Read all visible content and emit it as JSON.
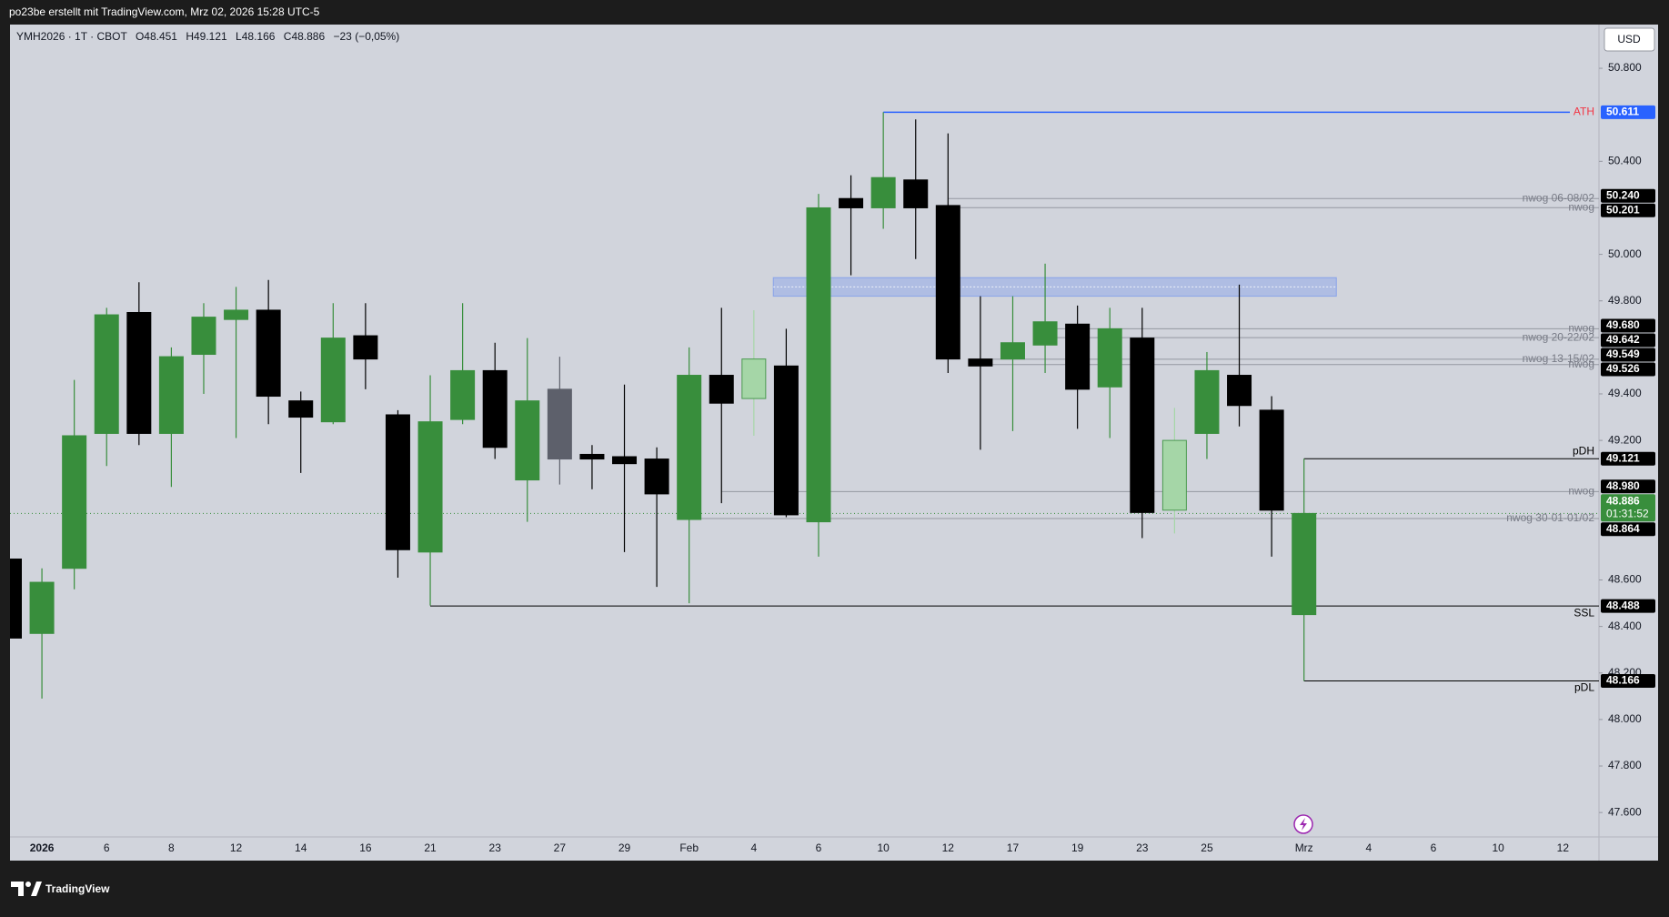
{
  "header": {
    "text": "po23be erstellt mit TradingView.com, Mrz 02, 2026 15:28 UTC-5"
  },
  "footer": {
    "brand": "TradingView"
  },
  "chart_data": {
    "type": "candlestick",
    "currency": "USD",
    "legend": {
      "symbol": "YMH2026 · 1T · CBOT",
      "ohlc_letters": [
        "O",
        "H",
        "L",
        "C"
      ],
      "change": "−23 (−0,05%)"
    },
    "categories": [
      null,
      "2026",
      null,
      "6",
      null,
      "8",
      null,
      "12",
      null,
      "14",
      null,
      "16",
      null,
      "21",
      null,
      "23",
      null,
      "27",
      null,
      "29",
      null,
      "Feb",
      null,
      "4",
      null,
      "6",
      null,
      "10",
      null,
      "12",
      null,
      "17",
      null,
      "19",
      null,
      "23",
      null,
      "25",
      null,
      null,
      "Mrz",
      null,
      "4",
      null,
      "6",
      null,
      "10",
      null,
      "12"
    ],
    "open": [
      48.69,
      48.37,
      48.65,
      49.23,
      49.75,
      49.23,
      49.57,
      49.72,
      49.76,
      49.37,
      49.28,
      49.65,
      49.31,
      48.72,
      49.29,
      49.5,
      49.03,
      49.42,
      49.14,
      49.13,
      49.12,
      48.86,
      49.48,
      49.38,
      49.52,
      48.85,
      50.24,
      50.2,
      50.32,
      50.21,
      49.55,
      49.55,
      49.61,
      49.7,
      49.43,
      49.64,
      48.9,
      49.23,
      49.48,
      49.33,
      48.451,
      null,
      null,
      null,
      null,
      null,
      null,
      null,
      null
    ],
    "high": [
      48.69,
      48.65,
      49.46,
      49.77,
      49.88,
      49.6,
      49.79,
      49.86,
      49.89,
      49.41,
      49.79,
      49.79,
      49.33,
      49.48,
      49.79,
      49.62,
      49.64,
      49.56,
      49.18,
      49.44,
      49.17,
      49.6,
      49.77,
      49.76,
      49.68,
      50.26,
      50.34,
      50.611,
      50.58,
      50.52,
      49.82,
      49.82,
      49.96,
      49.78,
      49.77,
      49.77,
      49.34,
      49.58,
      49.87,
      49.39,
      49.121,
      null,
      null,
      null,
      null,
      null,
      null,
      null,
      null
    ],
    "low": [
      48.35,
      48.09,
      48.56,
      49.09,
      49.18,
      49.0,
      49.4,
      49.21,
      49.27,
      49.06,
      49.27,
      49.42,
      48.61,
      48.49,
      49.27,
      49.12,
      48.85,
      49.01,
      48.99,
      48.72,
      48.57,
      48.5,
      48.93,
      49.22,
      48.87,
      48.7,
      49.91,
      50.11,
      49.98,
      49.49,
      49.16,
      49.24,
      49.49,
      49.25,
      49.21,
      48.78,
      48.8,
      49.12,
      49.26,
      48.7,
      48.166,
      null,
      null,
      null,
      null,
      null,
      null,
      null,
      null
    ],
    "close": [
      48.35,
      48.59,
      49.22,
      49.74,
      49.23,
      49.56,
      49.73,
      49.76,
      49.39,
      49.3,
      49.64,
      49.55,
      48.73,
      49.28,
      49.5,
      49.17,
      49.37,
      49.12,
      49.12,
      49.1,
      48.97,
      49.48,
      49.36,
      49.55,
      48.88,
      50.2,
      50.2,
      50.33,
      50.2,
      49.55,
      49.52,
      49.62,
      49.71,
      49.42,
      49.68,
      48.89,
      49.2,
      49.5,
      49.35,
      48.9,
      48.886,
      null,
      null,
      null,
      null,
      null,
      null,
      null,
      null
    ],
    "colors": [
      "#000000",
      "#388e3c",
      "#388e3c",
      "#388e3c",
      "#000000",
      "#388e3c",
      "#388e3c",
      "#388e3c",
      "#000000",
      "#000000",
      "#388e3c",
      "#000000",
      "#000000",
      "#388e3c",
      "#388e3c",
      "#000000",
      "#388e3c",
      "#5d606b",
      "#000000",
      "#000000",
      "#000000",
      "#388e3c",
      "#000000",
      "#a5d6a7",
      "#000000",
      "#388e3c",
      "#000000",
      "#388e3c",
      "#000000",
      "#000000",
      "#000000",
      "#388e3c",
      "#388e3c",
      "#000000",
      "#388e3c",
      "#000000",
      "#a5d6a7",
      "#388e3c",
      "#000000",
      "#000000",
      "#388e3c",
      null,
      null,
      null,
      null,
      null,
      null,
      null,
      null
    ],
    "ylim": [
      47.495,
      50.988
    ],
    "yticks": [
      {
        "value": 50.8,
        "label": "50.800"
      },
      {
        "value": 50.4,
        "label": "50.400"
      },
      {
        "value": 50.0,
        "label": "50.000"
      },
      {
        "value": 49.8,
        "label": "49.800"
      },
      {
        "value": 49.4,
        "label": "49.400"
      },
      {
        "value": 49.2,
        "label": "49.200"
      },
      {
        "value": 48.6,
        "label": "48.600"
      },
      {
        "value": 48.4,
        "label": "48.400"
      },
      {
        "value": 48.2,
        "label": "48.200"
      },
      {
        "value": 48.0,
        "label": "48.000"
      },
      {
        "value": 47.8,
        "label": "47.800"
      },
      {
        "value": 47.6,
        "label": "47.600"
      }
    ],
    "zones": [
      {
        "low": 49.82,
        "high": 49.9,
        "color": "rgba(41,98,255,0.2)"
      }
    ],
    "levels": [
      {
        "value": 50.611,
        "value_label": "50.611",
        "label": "ATH",
        "color": "#2962ff",
        "label_color": "#f23645",
        "badge_color": "#2962ff"
      },
      {
        "value": 50.24,
        "value_label": "50.240",
        "label": "nwog 06-08/02",
        "color": "#9598a1",
        "label_color": "#787b86",
        "badge_color": "#000000"
      },
      {
        "value": 50.201,
        "value_label": "50.201",
        "label": "nwog",
        "color": "#9598a1",
        "label_color": "#787b86",
        "badge_color": "#000000"
      },
      {
        "value": 49.68,
        "value_label": "49.680",
        "label": "nwog",
        "color": "#9598a1",
        "label_color": "#787b86",
        "badge_color": "#000000"
      },
      {
        "value": 49.642,
        "value_label": "49.642",
        "label": "nwog 20-22/02",
        "color": "#9598a1",
        "label_color": "#787b86",
        "badge_color": "#000000"
      },
      {
        "value": 49.549,
        "value_label": "49.549",
        "label": "nwog 13-15/02",
        "color": "#9598a1",
        "label_color": "#787b86",
        "badge_color": "#000000"
      },
      {
        "value": 49.526,
        "value_label": "49.526",
        "label": "nwog",
        "color": "#9598a1",
        "label_color": "#787b86",
        "badge_color": "#000000"
      },
      {
        "value": 49.121,
        "value_label": "49.121",
        "label": "pDH",
        "color": "#000000",
        "label_color": "#000000",
        "badge_color": "#000000"
      },
      {
        "value": 48.98,
        "value_label": "48.980",
        "label": "nwog",
        "color": "#9598a1",
        "label_color": "#787b86",
        "badge_color": "#000000"
      },
      {
        "value": 48.886,
        "value_label": "48.886",
        "countdown": "01:31:52",
        "color": "#388e3c",
        "badge_color": "#388e3c",
        "style": "dotted"
      },
      {
        "value": 48.864,
        "value_label": "48.864",
        "label": "nwog 30-01-01/02",
        "color": "#9598a1",
        "label_color": "#787b86",
        "badge_color": "#000000"
      },
      {
        "value": 48.488,
        "value_label": "48.488",
        "label": "SSL",
        "color": "#000000",
        "label_color": "#000000",
        "badge_color": "#000000"
      },
      {
        "value": 48.166,
        "value_label": "48.166",
        "label": "pDL",
        "color": "#000000",
        "label_color": "#000000",
        "badge_color": "#000000"
      }
    ]
  }
}
